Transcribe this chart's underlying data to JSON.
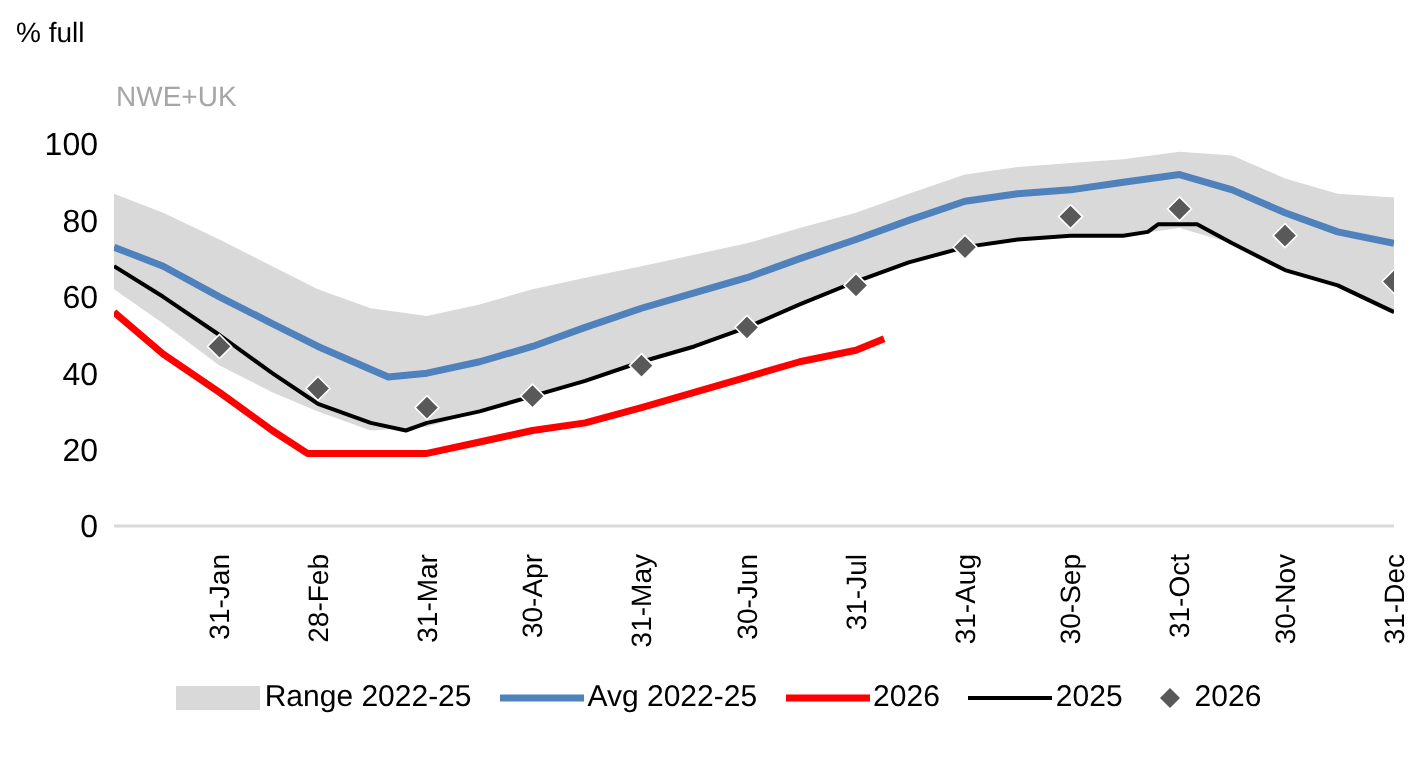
{
  "chart_data": {
    "type": "line",
    "ylabel": "% full",
    "annotations": [
      "NWE+UK"
    ],
    "xlim": [
      "--01-01",
      "--12-31"
    ],
    "xticks": [
      {
        "value": "--01-31",
        "label": "31-Jan"
      },
      {
        "value": "--02-28",
        "label": "28-Feb"
      },
      {
        "value": "--03-31",
        "label": "31-Mar"
      },
      {
        "value": "--04-30",
        "label": "30-Apr"
      },
      {
        "value": "--05-31",
        "label": "31-May"
      },
      {
        "value": "--06-30",
        "label": "30-Jun"
      },
      {
        "value": "--07-31",
        "label": "31-Jul"
      },
      {
        "value": "--08-31",
        "label": "31-Aug"
      },
      {
        "value": "--09-30",
        "label": "30-Sep"
      },
      {
        "value": "--10-31",
        "label": "31-Oct"
      },
      {
        "value": "--11-30",
        "label": "30-Nov"
      },
      {
        "value": "--12-31",
        "label": "31-Dec"
      }
    ],
    "ylim": [
      0,
      100
    ],
    "yticks": [
      0,
      20,
      40,
      60,
      80,
      100
    ],
    "grid": false,
    "legend": "bottom",
    "series": [
      {
        "name": "Range 2022-25",
        "type": "area",
        "color": "#d9d9d9",
        "x": [
          "--01-01",
          "--01-15",
          "--01-31",
          "--02-15",
          "--02-28",
          "--03-15",
          "--03-31",
          "--04-15",
          "--04-30",
          "--05-15",
          "--05-31",
          "--06-15",
          "--06-30",
          "--07-15",
          "--07-31",
          "--08-15",
          "--08-31",
          "--09-15",
          "--09-30",
          "--10-15",
          "--10-31",
          "--11-15",
          "--11-30",
          "--12-15",
          "--12-31"
        ],
        "values": [
          null,
          null,
          null,
          null,
          null,
          null,
          null,
          null,
          null,
          null,
          null,
          null,
          null,
          null,
          null,
          null,
          null,
          null,
          null,
          null,
          null,
          null,
          null,
          null,
          null
        ],
        "lower": [
          62,
          53,
          42,
          35,
          30,
          25,
          26,
          30,
          34,
          38,
          43,
          47,
          52,
          58,
          64,
          69,
          73,
          75,
          76,
          76,
          78,
          74,
          67,
          63,
          56
        ],
        "upper": [
          87,
          82,
          75,
          68,
          62,
          57,
          55,
          58,
          62,
          65,
          68,
          71,
          74,
          78,
          82,
          87,
          92,
          94,
          95,
          96,
          98,
          97,
          91,
          87,
          86
        ]
      },
      {
        "name": "Avg 2022-25",
        "color": "#4f81bd",
        "x": [
          "--01-01",
          "--01-15",
          "--01-31",
          "--02-15",
          "--02-28",
          "--03-20",
          "--03-31",
          "--04-15",
          "--04-30",
          "--05-15",
          "--05-31",
          "--06-15",
          "--06-30",
          "--07-15",
          "--07-31",
          "--08-15",
          "--08-31",
          "--09-15",
          "--09-30",
          "--10-15",
          "--10-31",
          "--11-15",
          "--11-30",
          "--12-15",
          "--12-31"
        ],
        "values": [
          73,
          68,
          60,
          53,
          47,
          39,
          40,
          43,
          47,
          52,
          57,
          61,
          65,
          70,
          75,
          80,
          85,
          87,
          88,
          90,
          92,
          88,
          82,
          77,
          74
        ]
      },
      {
        "name": "2026",
        "color": "#ff0000",
        "x": [
          "--01-01",
          "--01-15",
          "--01-31",
          "--02-15",
          "--02-25",
          "--03-15",
          "--03-31",
          "--04-15",
          "--04-30",
          "--05-15",
          "--05-31",
          "--06-15",
          "--06-30",
          "--07-15",
          "--07-31",
          "--08-08"
        ],
        "values": [
          56,
          45,
          35,
          25,
          19,
          19,
          19,
          22,
          25,
          27,
          31,
          35,
          39,
          43,
          46,
          49
        ]
      },
      {
        "name": "2025",
        "color": "#000000",
        "x": [
          "--01-01",
          "--01-15",
          "--01-31",
          "--02-15",
          "--02-28",
          "--03-15",
          "--03-25",
          "--03-31",
          "--04-15",
          "--04-30",
          "--05-15",
          "--05-31",
          "--06-15",
          "--06-30",
          "--07-15",
          "--07-31",
          "--08-15",
          "--08-31",
          "--09-15",
          "--09-30",
          "--10-15",
          "--10-22",
          "--10-25",
          "--11-05",
          "--11-15",
          "--11-30",
          "--12-15",
          "--12-31"
        ],
        "values": [
          68,
          60,
          50,
          40,
          32,
          27,
          25,
          27,
          30,
          34,
          38,
          43,
          47,
          52,
          58,
          64,
          69,
          73,
          75,
          76,
          76,
          77,
          79,
          79,
          74,
          67,
          63,
          56
        ]
      },
      {
        "name": "2026",
        "type": "scatter",
        "marker": "diamond",
        "color": "#595959",
        "x": [
          "--01-31",
          "--02-28",
          "--03-31",
          "--04-30",
          "--05-31",
          "--06-30",
          "--07-31",
          "--08-31",
          "--09-30",
          "--10-31",
          "--11-30",
          "--12-31"
        ],
        "values": [
          47,
          36,
          31,
          34,
          42,
          52,
          63,
          73,
          81,
          83,
          76,
          64
        ]
      }
    ]
  }
}
